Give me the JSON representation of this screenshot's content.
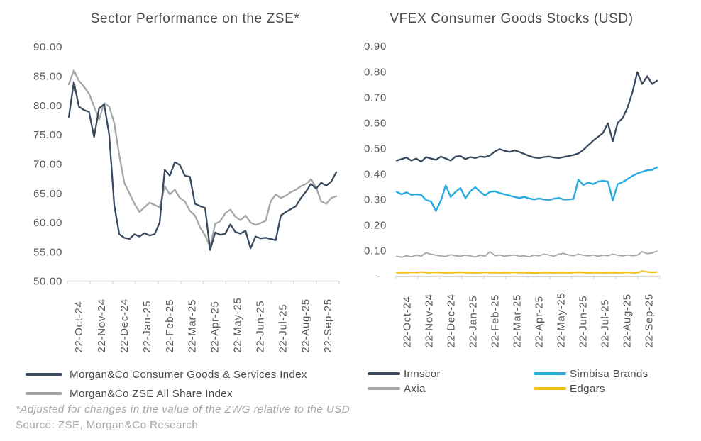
{
  "colors": {
    "navy": "#394a5e",
    "gray": "#a6a6a6",
    "blue": "#29abe2",
    "yellow": "#f2c115",
    "axis_line": "#d8d8d8",
    "tick_mark": "#cfcfcf",
    "title_text": "#4a4a4a",
    "tick_text": "#595959",
    "footnote_text": "#a6a6a6"
  },
  "footer": {
    "footnote": "*Adjusted for changes in the value of the ZWG relative to the USD",
    "source": "Source: ZSE, Morgan&Co Research"
  },
  "chart_data": [
    {
      "type": "line",
      "title": "Sector Performance on the ZSE*",
      "grid": false,
      "legend_position": "bottom-left",
      "x_tick_labels": [
        "22-Oct-24",
        "22-Nov-24",
        "22-Dec-24",
        "22-Jan-25",
        "22-Feb-25",
        "22-Mar-25",
        "22-Apr-25",
        "22-May-25",
        "22-Jun-25",
        "22-Jul-25",
        "22-Aug-25",
        "22-Sep-25"
      ],
      "y_axis": {
        "min": 50,
        "max": 90,
        "ticks": [
          {
            "label": "90.00",
            "value": 90
          },
          {
            "label": "85.00",
            "value": 85
          },
          {
            "label": "80.00",
            "value": 80
          },
          {
            "label": "75.00",
            "value": 75
          },
          {
            "label": "70.00",
            "value": 70
          },
          {
            "label": "65.00",
            "value": 65
          },
          {
            "label": "60.00",
            "value": 60
          },
          {
            "label": "55.00",
            "value": 55
          },
          {
            "label": "50.00",
            "value": 50
          }
        ]
      },
      "series": [
        {
          "name": "Morgan&Co Consumer Goods & Services Index",
          "color_key": "navy",
          "values": [
            78.0,
            84.0,
            79.8,
            79.2,
            78.9,
            74.6,
            79.5,
            80.2,
            75.0,
            63.0,
            58.0,
            57.4,
            57.2,
            58.0,
            57.6,
            58.2,
            57.8,
            58.0,
            60.0,
            69.0,
            68.0,
            70.3,
            69.8,
            68.0,
            67.8,
            63.2,
            62.8,
            62.5,
            55.3,
            58.3,
            57.9,
            58.1,
            59.7,
            58.4,
            58.1,
            58.6,
            55.6,
            57.6,
            57.3,
            57.4,
            57.2,
            57.0,
            61.2,
            61.8,
            62.3,
            62.8,
            64.2,
            65.3,
            66.6,
            65.8,
            66.8,
            66.3,
            67.0,
            68.6
          ]
        },
        {
          "name": "Morgan&Co ZSE All Share Index",
          "color_key": "gray",
          "values": [
            83.6,
            86.0,
            84.2,
            83.2,
            82.0,
            79.8,
            77.6,
            80.4,
            79.8,
            77.0,
            71.5,
            66.8,
            65.0,
            63.2,
            61.8,
            62.6,
            63.4,
            63.0,
            62.6,
            66.2,
            64.8,
            65.6,
            64.2,
            63.6,
            62.0,
            61.2,
            59.2,
            57.8,
            55.8,
            59.8,
            60.2,
            61.6,
            62.2,
            61.0,
            60.4,
            61.2,
            60.0,
            59.6,
            59.9,
            60.3,
            63.6,
            64.8,
            64.2,
            64.6,
            65.2,
            65.6,
            66.2,
            66.6,
            67.4,
            66.0,
            63.6,
            63.2,
            64.2,
            64.5
          ]
        }
      ]
    },
    {
      "type": "line",
      "title": "VFEX Consumer Goods Stocks (USD)",
      "grid": false,
      "legend_position": "bottom",
      "x_tick_labels": [
        "22-Oct-24",
        "22-Nov-24",
        "22-Dec-24",
        "22-Jan-25",
        "22-Feb-25",
        "22-Mar-25",
        "22-Apr-25",
        "22-May-25",
        "22-Jun-25",
        "22-Jul-25",
        "22-Aug-25",
        "22-Sep-25"
      ],
      "y_axis": {
        "min": 0,
        "max": 0.9,
        "ticks": [
          {
            "label": "0.90",
            "value": 0.9
          },
          {
            "label": "0.80",
            "value": 0.8
          },
          {
            "label": "0.70",
            "value": 0.7
          },
          {
            "label": "0.60",
            "value": 0.6
          },
          {
            "label": "0.50",
            "value": 0.5
          },
          {
            "label": "0.40",
            "value": 0.4
          },
          {
            "label": "0.30",
            "value": 0.3
          },
          {
            "label": "0.20",
            "value": 0.2
          },
          {
            "label": "0.10",
            "value": 0.1
          },
          {
            "label": "-",
            "value": 0
          }
        ]
      },
      "series": [
        {
          "name": "Innscor",
          "color_key": "navy",
          "values": [
            0.452,
            0.458,
            0.464,
            0.452,
            0.46,
            0.448,
            0.466,
            0.46,
            0.455,
            0.468,
            0.46,
            0.452,
            0.468,
            0.47,
            0.458,
            0.466,
            0.462,
            0.468,
            0.466,
            0.472,
            0.488,
            0.497,
            0.49,
            0.486,
            0.492,
            0.486,
            0.478,
            0.47,
            0.464,
            0.462,
            0.466,
            0.468,
            0.464,
            0.462,
            0.466,
            0.47,
            0.474,
            0.48,
            0.494,
            0.512,
            0.53,
            0.545,
            0.56,
            0.598,
            0.528,
            0.6,
            0.618,
            0.66,
            0.72,
            0.798,
            0.752,
            0.782,
            0.752,
            0.765
          ]
        },
        {
          "name": "Simbisa Brands",
          "color_key": "blue",
          "values": [
            0.33,
            0.32,
            0.328,
            0.318,
            0.32,
            0.318,
            0.298,
            0.292,
            0.255,
            0.295,
            0.355,
            0.31,
            0.33,
            0.345,
            0.305,
            0.332,
            0.348,
            0.33,
            0.316,
            0.33,
            0.332,
            0.325,
            0.32,
            0.315,
            0.31,
            0.306,
            0.31,
            0.304,
            0.3,
            0.304,
            0.3,
            0.298,
            0.303,
            0.306,
            0.3,
            0.3,
            0.302,
            0.378,
            0.356,
            0.366,
            0.36,
            0.37,
            0.373,
            0.37,
            0.296,
            0.36,
            0.368,
            0.38,
            0.392,
            0.402,
            0.408,
            0.414,
            0.416,
            0.426
          ]
        },
        {
          "name": "Axia",
          "color_key": "gray",
          "values": [
            0.078,
            0.074,
            0.08,
            0.076,
            0.082,
            0.078,
            0.092,
            0.086,
            0.082,
            0.079,
            0.077,
            0.084,
            0.08,
            0.078,
            0.082,
            0.079,
            0.075,
            0.082,
            0.078,
            0.096,
            0.08,
            0.083,
            0.078,
            0.081,
            0.083,
            0.078,
            0.08,
            0.076,
            0.082,
            0.08,
            0.086,
            0.083,
            0.078,
            0.086,
            0.089,
            0.083,
            0.08,
            0.086,
            0.082,
            0.079,
            0.083,
            0.078,
            0.082,
            0.08,
            0.086,
            0.082,
            0.079,
            0.083,
            0.08,
            0.082,
            0.096,
            0.088,
            0.091,
            0.098
          ]
        },
        {
          "name": "Edgars",
          "color_key": "yellow",
          "values": [
            0.013,
            0.014,
            0.014,
            0.015,
            0.014,
            0.016,
            0.014,
            0.014,
            0.015,
            0.014,
            0.013,
            0.014,
            0.014,
            0.015,
            0.014,
            0.014,
            0.013,
            0.014,
            0.015,
            0.014,
            0.014,
            0.013,
            0.014,
            0.014,
            0.015,
            0.014,
            0.014,
            0.013,
            0.012,
            0.013,
            0.014,
            0.014,
            0.013,
            0.014,
            0.014,
            0.013,
            0.014,
            0.015,
            0.014,
            0.013,
            0.014,
            0.014,
            0.013,
            0.014,
            0.014,
            0.013,
            0.014,
            0.015,
            0.014,
            0.013,
            0.02,
            0.017,
            0.015,
            0.016
          ]
        }
      ]
    }
  ]
}
